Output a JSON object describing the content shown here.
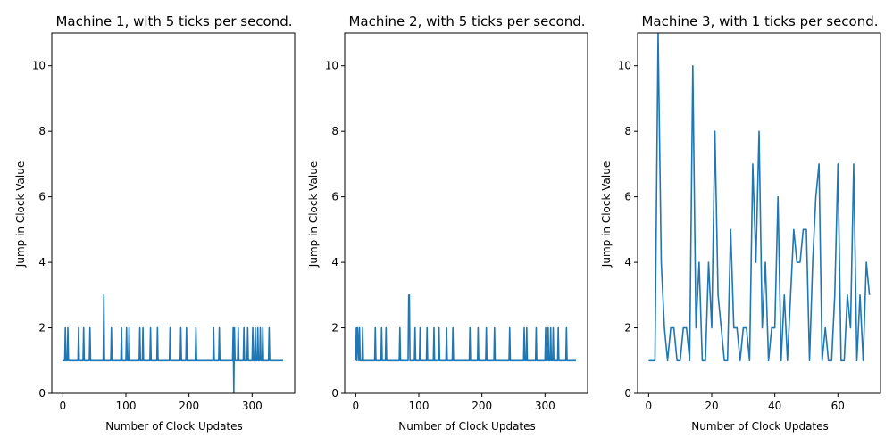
{
  "chart_data": [
    {
      "type": "line",
      "title": "Machine 1, with 5 ticks per second.",
      "xlabel": "Number of Clock Updates",
      "ylabel": "Jump in Clock Value",
      "xlim": [
        -17.5,
        367.5
      ],
      "ylim": [
        0,
        11
      ],
      "xticks": [
        0,
        100,
        200,
        300
      ],
      "xtick_labels": [
        "0",
        "100",
        "200",
        "300"
      ],
      "yticks": [
        0,
        2,
        4,
        6,
        8,
        10
      ],
      "ytick_labels": [
        "0",
        "2",
        "4",
        "6",
        "8",
        "10"
      ],
      "grid": false,
      "color": "#1f77b4",
      "series": [
        {
          "x": [
            0,
            3,
            4,
            5,
            7,
            8,
            9,
            24,
            25,
            26,
            32,
            33,
            34,
            42,
            43,
            44,
            64,
            65,
            66,
            76,
            77,
            78,
            92,
            93,
            94,
            100,
            101,
            102,
            104,
            105,
            106,
            121,
            122,
            123,
            126,
            127,
            128,
            138,
            139,
            140,
            149,
            150,
            151,
            169,
            170,
            171,
            186,
            187,
            188,
            195,
            196,
            197,
            210,
            211,
            212,
            238,
            239,
            240,
            247,
            248,
            249,
            269,
            270,
            271,
            272,
            273,
            277,
            278,
            279,
            286,
            287,
            288,
            292,
            293,
            294,
            300,
            301,
            302,
            304,
            305,
            306,
            308,
            309,
            310,
            312,
            313,
            314,
            316,
            317,
            318,
            326,
            327,
            328,
            349
          ],
          "y": [
            1,
            1,
            2,
            1,
            1,
            2,
            1,
            1,
            2,
            1,
            1,
            2,
            1,
            1,
            2,
            1,
            1,
            3,
            1,
            1,
            2,
            1,
            1,
            2,
            1,
            1,
            2,
            1,
            1,
            2,
            1,
            1,
            2,
            1,
            1,
            2,
            1,
            1,
            2,
            1,
            1,
            2,
            1,
            1,
            2,
            1,
            1,
            2,
            1,
            1,
            2,
            1,
            1,
            2,
            1,
            1,
            2,
            1,
            1,
            2,
            1,
            1,
            2,
            0,
            2,
            1,
            1,
            2,
            1,
            1,
            2,
            1,
            1,
            2,
            1,
            1,
            2,
            1,
            1,
            2,
            1,
            1,
            2,
            1,
            1,
            2,
            1,
            1,
            2,
            1,
            1,
            2,
            1,
            1
          ]
        }
      ]
    },
    {
      "type": "line",
      "title": "Machine 2, with 5 ticks per second.",
      "xlabel": "Number of Clock Updates",
      "ylabel": "Jump in Clock Value",
      "xlim": [
        -17.5,
        367.5
      ],
      "ylim": [
        0,
        11
      ],
      "xticks": [
        0,
        100,
        200,
        300
      ],
      "xtick_labels": [
        "0",
        "100",
        "200",
        "300"
      ],
      "yticks": [
        0,
        2,
        4,
        6,
        8,
        10
      ],
      "ytick_labels": [
        "0",
        "2",
        "4",
        "6",
        "8",
        "10"
      ],
      "grid": false,
      "color": "#1f77b4",
      "series": [
        {
          "x": [
            0,
            1,
            2,
            3,
            5,
            6,
            7,
            10,
            11,
            12,
            30,
            31,
            32,
            40,
            41,
            42,
            47,
            48,
            49,
            69,
            70,
            71,
            83,
            84,
            85,
            86,
            93,
            94,
            95,
            101,
            102,
            103,
            112,
            113,
            114,
            123,
            124,
            125,
            131,
            132,
            133,
            143,
            144,
            145,
            153,
            154,
            155,
            180,
            181,
            182,
            193,
            194,
            195,
            206,
            207,
            208,
            219,
            220,
            221,
            243,
            244,
            245,
            266,
            267,
            268,
            270,
            271,
            272,
            285,
            286,
            287,
            300,
            301,
            302,
            304,
            305,
            306,
            308,
            309,
            310,
            312,
            313,
            314,
            320,
            321,
            322,
            333,
            334,
            335,
            349
          ],
          "y": [
            1,
            2,
            1,
            2,
            1,
            2,
            1,
            1,
            2,
            1,
            1,
            2,
            1,
            1,
            2,
            1,
            1,
            2,
            1,
            1,
            2,
            1,
            1,
            3,
            3,
            1,
            1,
            2,
            1,
            1,
            2,
            1,
            1,
            2,
            1,
            1,
            2,
            1,
            1,
            2,
            1,
            1,
            2,
            1,
            1,
            2,
            1,
            1,
            2,
            1,
            1,
            2,
            1,
            1,
            2,
            1,
            1,
            2,
            1,
            1,
            2,
            1,
            1,
            2,
            1,
            1,
            2,
            1,
            1,
            2,
            1,
            1,
            2,
            1,
            1,
            2,
            1,
            1,
            2,
            1,
            1,
            2,
            1,
            1,
            2,
            1,
            1,
            2,
            1,
            1
          ]
        }
      ]
    },
    {
      "type": "line",
      "title": "Machine 3, with 1 ticks per second.",
      "xlabel": "Number of Clock Updates",
      "ylabel": "Jump in Clock Value",
      "xlim": [
        -3.5,
        73.5
      ],
      "ylim": [
        0,
        11
      ],
      "xticks": [
        0,
        20,
        40,
        60
      ],
      "xtick_labels": [
        "0",
        "20",
        "40",
        "60"
      ],
      "yticks": [
        0,
        2,
        4,
        6,
        8,
        10
      ],
      "ytick_labels": [
        "0",
        "2",
        "4",
        "6",
        "8",
        "10"
      ],
      "grid": false,
      "color": "#1f77b4",
      "series": [
        {
          "x": [
            0,
            1,
            2,
            3,
            4,
            5,
            6,
            7,
            8,
            9,
            10,
            11,
            12,
            13,
            14,
            15,
            16,
            17,
            18,
            19,
            20,
            21,
            22,
            23,
            24,
            25,
            26,
            27,
            28,
            29,
            30,
            31,
            32,
            33,
            34,
            35,
            36,
            37,
            38,
            39,
            40,
            41,
            42,
            43,
            44,
            45,
            46,
            47,
            48,
            49,
            50,
            51,
            52,
            53,
            54,
            55,
            56,
            57,
            58,
            59,
            60,
            61,
            62,
            63,
            64,
            65,
            66,
            67,
            68,
            69,
            70
          ],
          "y": [
            1,
            1,
            1,
            11,
            4,
            2,
            1,
            2,
            2,
            1,
            1,
            2,
            2,
            1,
            10,
            2,
            4,
            1,
            1,
            4,
            2,
            8,
            3,
            2,
            1,
            1,
            5,
            2,
            2,
            1,
            2,
            2,
            1,
            7,
            4,
            8,
            2,
            4,
            1,
            2,
            2,
            6,
            1,
            3,
            1,
            3,
            5,
            4,
            4,
            5,
            5,
            1,
            4,
            6,
            7,
            1,
            2,
            1,
            1,
            3,
            7,
            1,
            1,
            3,
            2,
            7,
            1,
            3,
            1,
            4,
            3
          ]
        }
      ]
    }
  ]
}
